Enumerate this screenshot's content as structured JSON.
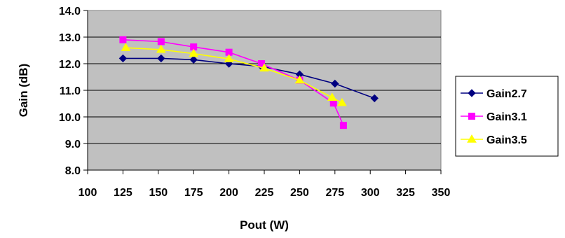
{
  "chart_data": {
    "type": "line",
    "xlabel": "Pout (W)",
    "ylabel": "Gain (dB)",
    "xlim": [
      100,
      350
    ],
    "ylim": [
      8.0,
      14.0
    ],
    "x_ticks": [
      "100",
      "125",
      "150",
      "175",
      "200",
      "225",
      "250",
      "275",
      "300",
      "325",
      "350"
    ],
    "y_ticks": [
      "8.0",
      "9.0",
      "10.0",
      "11.0",
      "12.0",
      "13.0",
      "14.0"
    ],
    "grid": true,
    "legend_position": "right",
    "plot_background": "#c0c0c0",
    "series": [
      {
        "name": "Gain2.7",
        "color": "#000080",
        "marker": "diamond",
        "x": [
          125,
          152,
          175,
          200,
          223,
          250,
          275,
          303
        ],
        "y": [
          12.2,
          12.2,
          12.15,
          12.0,
          11.9,
          11.6,
          11.25,
          10.7
        ]
      },
      {
        "name": "Gain3.1",
        "color": "#ff00ff",
        "marker": "square",
        "x": [
          125,
          152,
          175,
          200,
          223,
          250,
          274,
          281
        ],
        "y": [
          12.9,
          12.83,
          12.63,
          12.43,
          12.0,
          11.38,
          10.52,
          9.68
        ]
      },
      {
        "name": "Gain3.5",
        "color": "#ffff00",
        "marker": "triangle",
        "x": [
          127,
          152,
          175,
          200,
          225,
          250,
          273,
          280
        ],
        "y": [
          12.6,
          12.53,
          12.38,
          12.18,
          11.83,
          11.38,
          10.73,
          10.53
        ]
      }
    ]
  }
}
